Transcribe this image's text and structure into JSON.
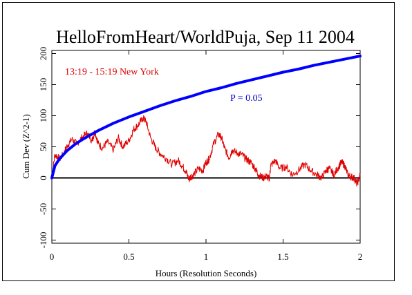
{
  "chart_data": {
    "type": "line",
    "title": "HelloFromHeart/WorldPuja, Sep 11 2004",
    "xlabel": "Hours (Resolution Seconds)",
    "ylabel": "Cum Dev (Z^2-1)",
    "xlim": [
      0,
      2
    ],
    "ylim": [
      -105,
      205
    ],
    "xticks": [
      0,
      0.5,
      1,
      1.5,
      2
    ],
    "xtick_labels": [
      "0",
      "0.5",
      "1",
      "1.5",
      "2"
    ],
    "yticks": [
      -100,
      -50,
      0,
      50,
      100,
      150,
      200
    ],
    "ytick_labels": [
      "-100",
      "-50",
      "0",
      "50",
      "100",
      "150",
      "200"
    ],
    "grid": false,
    "annotations": [
      {
        "text": "13:19 - 15:19 New York",
        "color": "#e00000"
      },
      {
        "text": "P = 0.05",
        "color": "#0000c8"
      }
    ],
    "series": [
      {
        "color": "#e00000",
        "x": [
          0,
          0.02,
          0.05,
          0.08,
          0.1,
          0.13,
          0.16,
          0.2,
          0.23,
          0.26,
          0.28,
          0.3,
          0.33,
          0.36,
          0.4,
          0.43,
          0.46,
          0.5,
          0.53,
          0.56,
          0.59,
          0.61,
          0.64,
          0.67,
          0.7,
          0.74,
          0.78,
          0.82,
          0.85,
          0.87,
          0.89,
          0.9,
          0.92,
          0.95,
          0.98,
          1.0,
          1.02,
          1.05,
          1.08,
          1.1,
          1.12,
          1.15,
          1.17,
          1.2,
          1.23,
          1.26,
          1.29,
          1.32,
          1.34,
          1.37,
          1.39,
          1.41,
          1.42,
          1.45,
          1.48,
          1.52,
          1.56,
          1.6,
          1.64,
          1.68,
          1.72,
          1.75,
          1.78,
          1.8,
          1.83,
          1.86,
          1.88,
          1.9,
          1.92,
          1.94,
          1.96,
          1.98,
          2.0
        ],
        "values": [
          0,
          38,
          30,
          40,
          52,
          62,
          55,
          66,
          72,
          60,
          75,
          55,
          48,
          58,
          45,
          65,
          50,
          60,
          78,
          85,
          96,
          92,
          65,
          50,
          40,
          32,
          22,
          28,
          18,
          10,
          -3,
          2,
          5,
          15,
          12,
          25,
          30,
          55,
          70,
          65,
          48,
          32,
          45,
          40,
          38,
          30,
          25,
          15,
          5,
          0,
          3,
          -2,
          20,
          28,
          15,
          18,
          5,
          12,
          22,
          12,
          5,
          0,
          12,
          15,
          5,
          18,
          25,
          20,
          5,
          2,
          0,
          -10,
          5
        ]
      },
      {
        "color": "#0000ff",
        "x": [
          0,
          0.02,
          0.05,
          0.1,
          0.15,
          0.2,
          0.25,
          0.3,
          0.4,
          0.5,
          0.6,
          0.7,
          0.8,
          0.9,
          1.0,
          1.1,
          1.2,
          1.3,
          1.4,
          1.5,
          1.6,
          1.7,
          1.8,
          1.9,
          2.0
        ],
        "values": [
          0,
          19.6,
          31,
          44,
          54,
          62,
          69,
          76,
          88,
          98,
          107,
          116,
          124,
          131,
          139,
          145,
          152,
          158,
          164,
          170,
          175,
          181,
          186,
          191,
          196
        ]
      }
    ]
  }
}
